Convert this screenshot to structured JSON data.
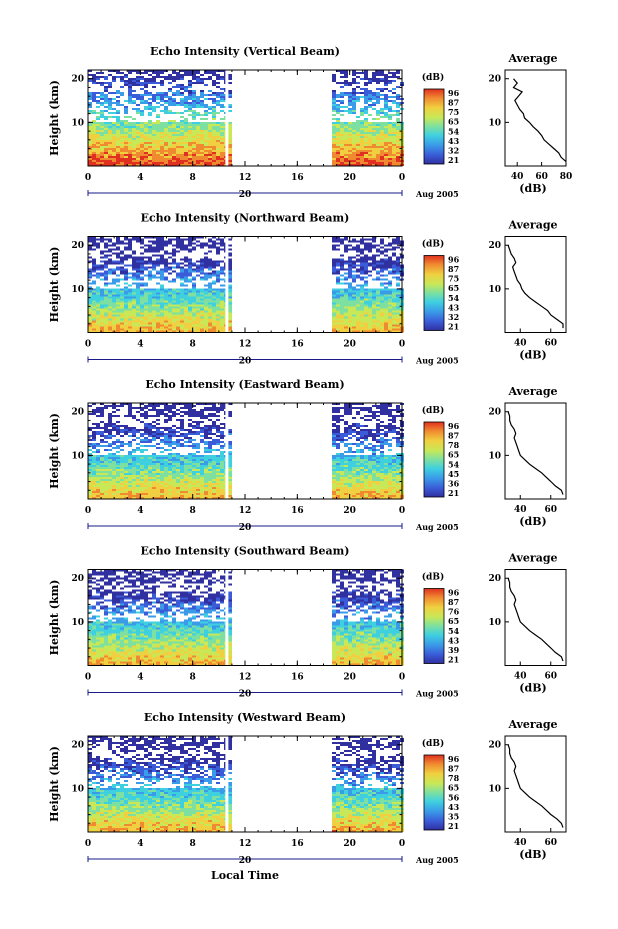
{
  "chart_data": {
    "type": "heatmap",
    "date_label": "Aug 2005",
    "day_marker": "20",
    "xlabel_bottom": "Local Time",
    "x_ticks": [
      "0",
      "4",
      "8",
      "12",
      "16",
      "20",
      "0"
    ],
    "ylabel": "Height (km)",
    "y_ticks": [
      "20",
      "10"
    ],
    "colorbar_unit": "(dB)",
    "colorbar_colors": [
      "#3030a0",
      "#3a5cd8",
      "#3a9be8",
      "#3fd0e0",
      "#7de0a0",
      "#c8e858",
      "#f0d040",
      "#f08a30",
      "#e03020"
    ],
    "data_gap_hours": [
      11.2,
      18.5
    ],
    "avg_title": "Average",
    "avg_xlabel": "(dB)",
    "avg_y_ticks": [
      "20",
      "10"
    ],
    "panels": [
      {
        "title": "Echo Intensity (Vertical Beam)",
        "colorbar_ticks": [
          "96",
          "87",
          "75",
          "65",
          "54",
          "43",
          "32",
          "21"
        ],
        "avg_x_ticks": [
          "40",
          "60",
          "80"
        ],
        "avg_xrange": [
          30,
          80
        ],
        "avg_profile": {
          "height_km": [
            1,
            2,
            3,
            4,
            5,
            6,
            7,
            8,
            9,
            10,
            11,
            12,
            13,
            14,
            15,
            16,
            17,
            18,
            19,
            20
          ],
          "db": [
            80,
            76,
            74,
            70,
            66,
            62,
            60,
            57,
            53,
            50,
            46,
            45,
            42,
            40,
            38,
            41,
            44,
            37,
            40,
            37
          ]
        }
      },
      {
        "title": "Echo Intensity (Northward Beam)",
        "colorbar_ticks": [
          "96",
          "87",
          "75",
          "65",
          "54",
          "43",
          "32",
          "21"
        ],
        "avg_x_ticks": [
          "40",
          "60"
        ],
        "avg_xrange": [
          30,
          70
        ],
        "avg_profile": {
          "height_km": [
            1,
            2,
            3,
            4,
            5,
            6,
            7,
            8,
            9,
            10,
            11,
            12,
            13,
            14,
            15,
            16,
            17,
            18,
            19,
            20
          ],
          "db": [
            68,
            68,
            64,
            60,
            58,
            54,
            50,
            46,
            43,
            41,
            40,
            38,
            37,
            36,
            35,
            37,
            36,
            34,
            33,
            32
          ]
        }
      },
      {
        "title": "Echo Intensity (Eastward Beam)",
        "colorbar_ticks": [
          "96",
          "87",
          "78",
          "65",
          "54",
          "45",
          "36",
          "21"
        ],
        "avg_x_ticks": [
          "40",
          "60"
        ],
        "avg_xrange": [
          30,
          70
        ],
        "avg_profile": {
          "height_km": [
            1,
            2,
            3,
            4,
            5,
            6,
            7,
            8,
            9,
            10,
            11,
            12,
            13,
            14,
            15,
            16,
            17,
            18,
            19,
            20
          ],
          "db": [
            68,
            67,
            63,
            60,
            57,
            54,
            50,
            46,
            43,
            40,
            39,
            38,
            37,
            36,
            37,
            36,
            34,
            33,
            33,
            32
          ]
        }
      },
      {
        "title": "Echo Intensity (Southward Beam)",
        "colorbar_ticks": [
          "96",
          "87",
          "76",
          "65",
          "54",
          "43",
          "39",
          "21"
        ],
        "avg_x_ticks": [
          "40",
          "60"
        ],
        "avg_xrange": [
          30,
          70
        ],
        "avg_profile": {
          "height_km": [
            1,
            2,
            3,
            4,
            5,
            6,
            7,
            8,
            9,
            10,
            11,
            12,
            13,
            14,
            15,
            16,
            17,
            18,
            19,
            20
          ],
          "db": [
            68,
            67,
            63,
            60,
            57,
            54,
            50,
            46,
            43,
            40,
            39,
            38,
            37,
            36,
            37,
            36,
            34,
            33,
            33,
            32
          ]
        }
      },
      {
        "title": "Echo Intensity (Westward Beam)",
        "colorbar_ticks": [
          "96",
          "87",
          "78",
          "65",
          "56",
          "43",
          "35",
          "21"
        ],
        "avg_x_ticks": [
          "40",
          "60"
        ],
        "avg_xrange": [
          30,
          70
        ],
        "avg_profile": {
          "height_km": [
            1,
            2,
            3,
            4,
            5,
            6,
            7,
            8,
            9,
            10,
            11,
            12,
            13,
            14,
            15,
            16,
            17,
            18,
            19,
            20
          ],
          "db": [
            68,
            67,
            64,
            60,
            57,
            54,
            50,
            46,
            43,
            40,
            39,
            38,
            37,
            36,
            37,
            36,
            34,
            33,
            33,
            32
          ]
        }
      }
    ]
  }
}
